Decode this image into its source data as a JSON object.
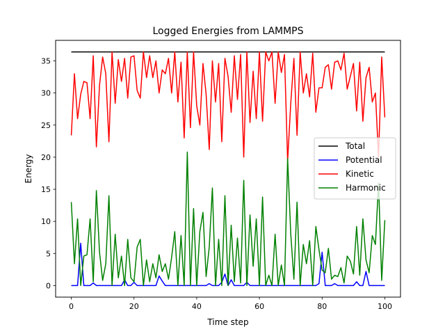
{
  "chart_data": {
    "type": "line",
    "title": "Logged Energies from LAMMPS",
    "xlabel": "Time step",
    "ylabel": "Energy",
    "xlim": [
      -5,
      105
    ],
    "ylim": [
      -1.8,
      38.2
    ],
    "xticks": [
      0,
      20,
      40,
      60,
      80,
      100
    ],
    "yticks": [
      0,
      5,
      10,
      15,
      20,
      25,
      30,
      35
    ],
    "legend_placement": "center-right",
    "grid": false,
    "series": [
      {
        "name": "Total",
        "color": "#000000",
        "x_start": 0,
        "x_step": 1,
        "values": [
          36.4,
          36.4,
          36.4,
          36.4,
          36.4,
          36.4,
          36.4,
          36.4,
          36.4,
          36.4,
          36.4,
          36.4,
          36.4,
          36.4,
          36.4,
          36.4,
          36.4,
          36.4,
          36.4,
          36.4,
          36.4,
          36.4,
          36.4,
          36.4,
          36.4,
          36.4,
          36.4,
          36.4,
          36.4,
          36.4,
          36.4,
          36.4,
          36.4,
          36.4,
          36.4,
          36.4,
          36.4,
          36.4,
          36.4,
          36.4,
          36.4,
          36.4,
          36.4,
          36.4,
          36.4,
          36.4,
          36.4,
          36.4,
          36.4,
          36.4,
          36.4,
          36.4,
          36.4,
          36.4,
          36.4,
          36.4,
          36.4,
          36.4,
          36.4,
          36.4,
          36.4,
          36.4,
          36.4,
          36.4,
          36.4,
          36.4,
          36.4,
          36.4,
          36.4,
          36.4,
          36.4,
          36.4,
          36.4,
          36.4,
          36.4,
          36.4,
          36.4,
          36.4,
          36.4,
          36.4,
          36.4,
          36.4,
          36.4,
          36.4,
          36.4,
          36.4,
          36.4,
          36.4,
          36.4,
          36.4,
          36.4,
          36.4,
          36.4,
          36.4,
          36.4,
          36.4,
          36.4,
          36.4,
          36.4,
          36.4,
          36.4
        ]
      },
      {
        "name": "Potential",
        "color": "#0000ff",
        "x_start": 0,
        "x_step": 1,
        "values": [
          0,
          0,
          0,
          6.6,
          0,
          0,
          0,
          0.4,
          0,
          0,
          0,
          0,
          0,
          0,
          0,
          0,
          0,
          0.9,
          0,
          0,
          0.5,
          0,
          0,
          0,
          0,
          0,
          0,
          0,
          1.5,
          0.7,
          0,
          0,
          0,
          0,
          0,
          0,
          0,
          0,
          0,
          0,
          0,
          0,
          0,
          0,
          0.3,
          0,
          0,
          0,
          0.5,
          1.8,
          0,
          0.9,
          0,
          0,
          0,
          0,
          0.5,
          0,
          0,
          0,
          0,
          0,
          0,
          0,
          0,
          0,
          0,
          0,
          0,
          0,
          0,
          0,
          0,
          0,
          0,
          0,
          0,
          0,
          0,
          0.3,
          5.2,
          0,
          0,
          0,
          0.3,
          0,
          0,
          0,
          0,
          0,
          0,
          0.6,
          0,
          0,
          2.2,
          0,
          0,
          0,
          0,
          0,
          0
        ]
      },
      {
        "name": "Kinetic",
        "color": "#ff0000",
        "x_start": 0,
        "x_step": 1,
        "values": [
          23.4,
          33.0,
          26.0,
          29.8,
          31.8,
          31.6,
          26.0,
          35.8,
          21.6,
          31.2,
          35.6,
          33.0,
          22.4,
          36.4,
          28.4,
          35.2,
          31.8,
          35.4,
          29.2,
          35.6,
          35.8,
          30.4,
          29.2,
          36.4,
          32.4,
          35.8,
          32.4,
          35.0,
          30.0,
          33.6,
          33.0,
          35.4,
          30.0,
          36.4,
          28.6,
          34.8,
          23.0,
          36.4,
          24.6,
          36.4,
          28.0,
          25.0,
          34.6,
          29.8,
          21.2,
          35.0,
          28.6,
          34.6,
          22.4,
          35.4,
          32.6,
          27.0,
          35.8,
          29.0,
          36.0,
          20.0,
          36.4,
          25.4,
          33.4,
          26.0,
          36.4,
          25.6,
          36.4,
          35.0,
          36.4,
          28.4,
          36.4,
          33.2,
          36.0,
          19.4,
          28.4,
          35.4,
          23.4,
          36.4,
          30.0,
          33.0,
          29.4,
          36.2,
          27.0,
          30.8,
          30.8,
          34.0,
          34.4,
          30.6,
          34.8,
          35.0,
          33.6,
          36.2,
          30.6,
          32.6,
          34.6,
          27.2,
          34.8,
          25.6,
          32.4,
          34.0,
          28.6,
          30.0,
          20.0,
          35.6,
          26.2
        ]
      },
      {
        "name": "Harmonic",
        "color": "#008000",
        "x_start": 0,
        "x_step": 1,
        "values": [
          13.0,
          3.4,
          10.4,
          0.0,
          4.6,
          4.8,
          10.4,
          0.6,
          14.8,
          5.2,
          0.8,
          3.4,
          14.0,
          0.0,
          8.0,
          1.2,
          4.6,
          0.0,
          7.2,
          1.2,
          0.6,
          6.0,
          7.2,
          0.0,
          4.0,
          0.6,
          3.4,
          1.2,
          4.8,
          2.2,
          3.4,
          1.0,
          4.4,
          8.4,
          0.0,
          7.8,
          0.0,
          20.8,
          0.0,
          12.0,
          0.0,
          8.4,
          11.4,
          1.4,
          6.0,
          15.2,
          0.0,
          7.2,
          0.0,
          14.0,
          0.0,
          9.4,
          0.6,
          7.4,
          0.4,
          16.4,
          0.0,
          11.0,
          3.0,
          10.4,
          0.0,
          13.8,
          0.0,
          1.6,
          0.0,
          8.0,
          0.0,
          3.2,
          0.0,
          19.8,
          8.0,
          1.0,
          13.0,
          0.0,
          6.4,
          3.4,
          7.0,
          0.0,
          9.2,
          5.6,
          2.4,
          2.0,
          5.8,
          1.0,
          1.6,
          1.4,
          2.8,
          0.4,
          4.6,
          3.8,
          1.8,
          9.2,
          1.6,
          10.4,
          4.0,
          2.0,
          7.8,
          6.4,
          16.0,
          0.8,
          10.2
        ]
      }
    ]
  }
}
